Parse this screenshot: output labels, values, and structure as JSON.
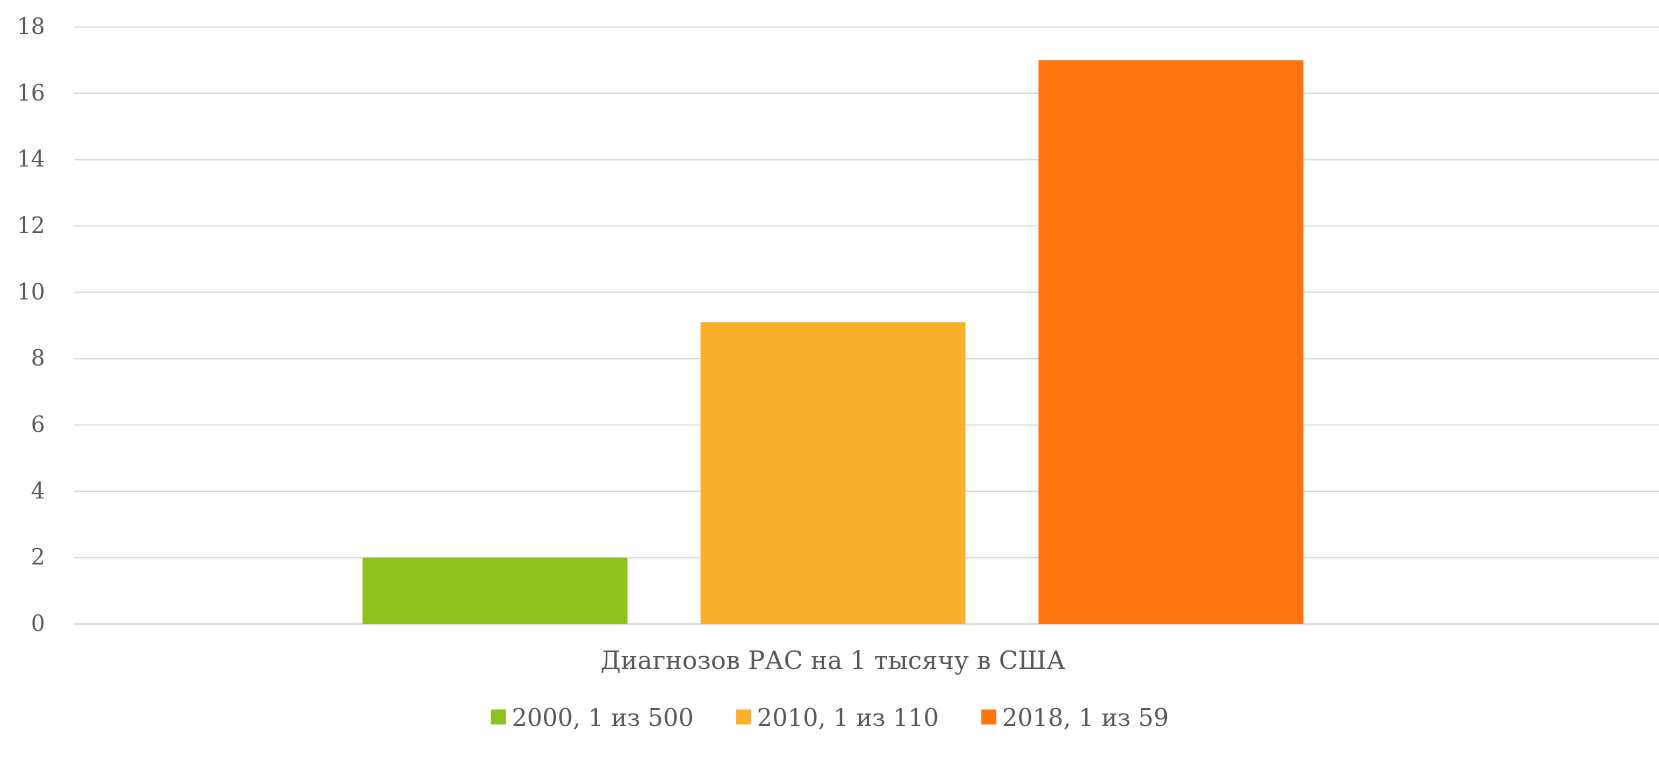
{
  "chart_data": {
    "type": "bar",
    "categories": [
      "Диагнозов РАС на 1 тысячу в США"
    ],
    "series": [
      {
        "name": "2000, 1 из 500",
        "values": [
          2
        ],
        "color": "#8dc21f"
      },
      {
        "name": "2010, 1 из 110",
        "values": [
          9.1
        ],
        "color": "#fbb02d"
      },
      {
        "name": "2018, 1 из 59",
        "values": [
          17
        ],
        "color": "#fd7510"
      }
    ],
    "ylim": [
      0,
      18
    ],
    "yticks": [
      "0",
      "2",
      "4",
      "6",
      "8",
      "10",
      "12",
      "14",
      "16",
      "18"
    ],
    "grid": true,
    "legend_position": "bottom"
  }
}
